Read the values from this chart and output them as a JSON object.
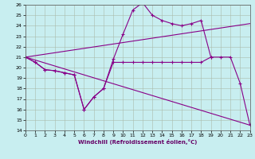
{
  "xlabel": "Windchill (Refroidissement éolien,°C)",
  "xlim": [
    0,
    23
  ],
  "ylim": [
    14,
    26
  ],
  "yticks": [
    14,
    15,
    16,
    17,
    18,
    19,
    20,
    21,
    22,
    23,
    24,
    25,
    26
  ],
  "xticks": [
    0,
    1,
    2,
    3,
    4,
    5,
    6,
    7,
    8,
    9,
    10,
    11,
    12,
    13,
    14,
    15,
    16,
    17,
    18,
    19,
    20,
    21,
    22,
    23
  ],
  "line_color": "#880088",
  "bg_color": "#c8eef0",
  "line1_x": [
    0,
    1,
    2,
    3,
    4,
    5,
    6,
    7,
    8,
    9,
    10,
    11,
    12,
    13,
    14,
    15,
    16,
    17,
    18,
    19
  ],
  "line1_y": [
    21.0,
    20.5,
    19.8,
    19.7,
    19.5,
    19.3,
    16.0,
    17.2,
    18.0,
    20.8,
    23.2,
    25.5,
    26.2,
    25.0,
    24.5,
    24.2,
    24.0,
    24.2,
    24.5,
    21.0
  ],
  "line2_x": [
    0,
    1,
    2,
    3,
    4,
    5,
    6,
    7,
    8,
    9,
    10,
    11,
    12,
    13,
    14,
    15,
    16,
    17,
    18,
    19,
    20,
    21,
    22,
    23
  ],
  "line2_y": [
    21.0,
    20.5,
    19.8,
    19.7,
    19.5,
    19.3,
    16.0,
    17.2,
    18.0,
    20.5,
    20.5,
    20.5,
    20.5,
    20.5,
    20.5,
    20.5,
    20.5,
    20.5,
    20.5,
    21.0,
    21.0,
    21.0,
    18.5,
    14.5
  ],
  "line3_x": [
    0,
    23
  ],
  "line3_y": [
    21.0,
    24.2
  ],
  "line4_x": [
    0,
    23
  ],
  "line4_y": [
    21.0,
    14.5
  ]
}
